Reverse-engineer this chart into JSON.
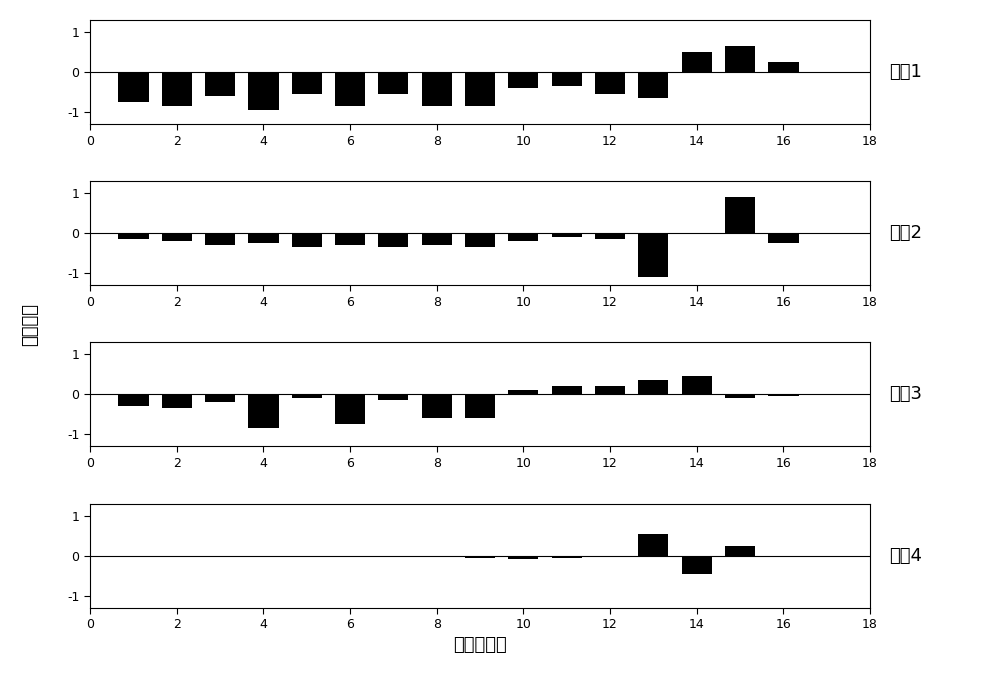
{
  "mode1_values": [
    -0.75,
    -0.85,
    -0.6,
    -0.95,
    -0.55,
    -0.85,
    -0.55,
    -0.85,
    -0.85,
    -0.4,
    -0.35,
    -0.55,
    -0.65,
    0.5,
    0.65,
    0.25
  ],
  "mode2_values": [
    -0.15,
    -0.2,
    -0.3,
    -0.25,
    -0.35,
    -0.3,
    -0.35,
    -0.3,
    -0.35,
    -0.2,
    -0.1,
    -0.15,
    -1.1,
    0.0,
    0.9,
    -0.25
  ],
  "mode3_values": [
    -0.3,
    -0.35,
    -0.2,
    -0.85,
    -0.1,
    -0.75,
    -0.15,
    -0.6,
    -0.6,
    0.1,
    0.2,
    0.2,
    0.35,
    0.45,
    -0.1,
    -0.05
  ],
  "mode4_values": [
    0.0,
    0.0,
    0.0,
    0.0,
    0.0,
    0.0,
    0.0,
    0.0,
    -0.05,
    -0.08,
    -0.05,
    0.0,
    0.55,
    -0.45,
    0.25,
    0.0
  ],
  "x_positions": [
    1,
    2,
    3,
    4,
    5,
    6,
    7,
    8,
    9,
    10,
    11,
    12,
    13,
    14,
    15,
    16
  ],
  "xlim": [
    0,
    18
  ],
  "ylim": [
    -1.3,
    1.3
  ],
  "yticks": [
    -1,
    0,
    1
  ],
  "xticks": [
    0,
    2,
    4,
    6,
    8,
    10,
    12,
    14,
    16,
    18
  ],
  "bar_color": "#000000",
  "bg_color": "#ffffff",
  "mode_labels": [
    "模式1",
    "模式2",
    "模式3",
    "模式4"
  ],
  "ylabel": "模态幅値",
  "xlabel": "发电机编号",
  "bar_width": 0.7,
  "label_fontsize": 13,
  "tick_fontsize": 9
}
